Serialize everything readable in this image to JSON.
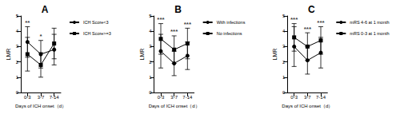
{
  "chart_data": [
    {
      "type": "line",
      "title": "A",
      "x_label": "Days of ICH onset（d）",
      "y_label": "LMR",
      "categories": [
        "0-3",
        "3-7",
        "7-14"
      ],
      "ylim": [
        0,
        5
      ],
      "yticks": [
        0,
        1,
        2,
        3,
        4,
        5
      ],
      "legend": "right",
      "series": [
        {
          "name": "ICH Score<3",
          "color": "#000000",
          "marker": "circle",
          "values": [
            3.3,
            2.5,
            2.8
          ],
          "errors": [
            1.0,
            0.9,
            1.0
          ]
        },
        {
          "name": "ICH Score>=3",
          "color": "#000000",
          "marker": "square",
          "values": [
            2.5,
            1.8,
            3.2
          ],
          "errors": [
            1.1,
            0.8,
            1.0
          ]
        }
      ],
      "annotations": [
        {
          "category": "0-3",
          "text": "**"
        },
        {
          "category": "3-7",
          "text": "*"
        }
      ]
    },
    {
      "type": "line",
      "title": "B",
      "x_label": "Days of ICH onset（d）",
      "y_label": "LMR",
      "categories": [
        "0-3",
        "3-7",
        "7-14"
      ],
      "ylim": [
        0,
        5
      ],
      "yticks": [
        0,
        1,
        2,
        3,
        4,
        5
      ],
      "legend": "right",
      "series": [
        {
          "name": "With infections",
          "color": "#000000",
          "marker": "circle",
          "values": [
            2.7,
            1.9,
            2.4
          ],
          "errors": [
            1.1,
            0.8,
            0.9
          ]
        },
        {
          "name": "No infections",
          "color": "#000000",
          "marker": "square",
          "values": [
            3.5,
            2.8,
            3.2
          ],
          "errors": [
            1.0,
            0.9,
            1.0
          ]
        }
      ],
      "annotations": [
        {
          "category": "0-3",
          "text": "***"
        },
        {
          "category": "3-7",
          "text": "***"
        },
        {
          "category": "7-14",
          "text": "***"
        }
      ]
    },
    {
      "type": "line",
      "title": "C",
      "x_label": "Days of ICH onset（d）",
      "y_label": "LMR",
      "categories": [
        "0-3",
        "3-7",
        "7-14"
      ],
      "ylim": [
        0,
        5
      ],
      "yticks": [
        0,
        1,
        2,
        3,
        4,
        5
      ],
      "legend": "right",
      "series": [
        {
          "name": "mRS 4-6 at 1 month",
          "color": "#000000",
          "marker": "circle",
          "values": [
            3.0,
            2.1,
            2.6
          ],
          "errors": [
            1.3,
            0.9,
            1.0
          ]
        },
        {
          "name": "mRS 0-3 at 1 month",
          "color": "#000000",
          "marker": "square",
          "values": [
            3.6,
            3.0,
            3.4
          ],
          "errors": [
            0.9,
            0.9,
            0.9
          ]
        }
      ],
      "annotations": [
        {
          "category": "0-3",
          "text": "***"
        },
        {
          "category": "3-7",
          "text": "***"
        },
        {
          "category": "7-14",
          "text": "***"
        }
      ]
    }
  ]
}
